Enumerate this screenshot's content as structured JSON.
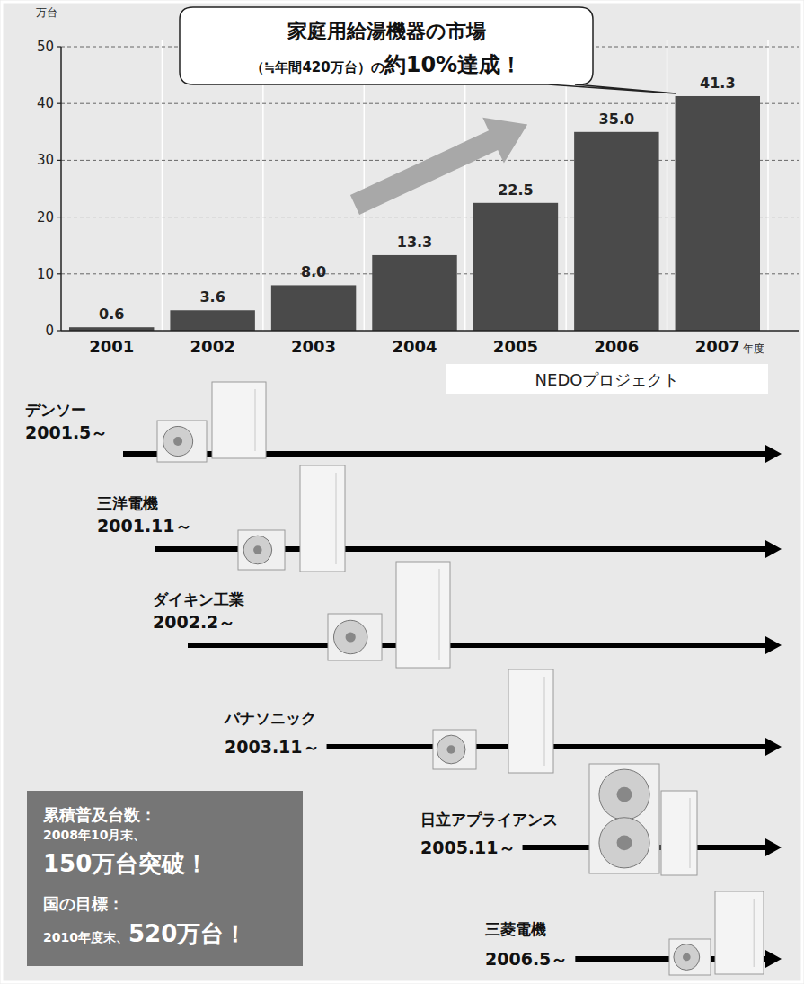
{
  "chart_data": {
    "type": "bar",
    "y_axis_label": "万台",
    "x_axis_label": "年度",
    "categories": [
      "2001",
      "2002",
      "2003",
      "2004",
      "2005",
      "2006",
      "2007"
    ],
    "values": [
      0.6,
      3.6,
      8.0,
      13.3,
      22.5,
      35.0,
      41.3
    ],
    "value_labels": [
      "0.6",
      "3.6",
      "8.0",
      "13.3",
      "22.5",
      "35.0",
      "41.3"
    ],
    "color": "#4a4a4a",
    "ylim": [
      0,
      50
    ],
    "yticks": [
      0,
      10,
      20,
      30,
      40,
      50
    ],
    "grid": true,
    "data_labels": true,
    "annotations": [
      "家庭用給湯機器の市場",
      "（≒年間420万台）の",
      "約10%達成！"
    ]
  },
  "timeline": {
    "label": "NEDOプロジェクト",
    "companies": [
      {
        "name": "デンソー",
        "start": "2001.5～"
      },
      {
        "name": "三洋電機",
        "start": "2001.11～"
      },
      {
        "name": "ダイキン工業",
        "start": "2002.2～"
      },
      {
        "name": "パナソニック",
        "start": "2003.11～"
      },
      {
        "name": "日立アプライアンス",
        "start": "2005.11～"
      },
      {
        "name": "三菱電機",
        "start": "2006.5～"
      }
    ]
  },
  "summary_box": {
    "cumulative": {
      "label": "累積普及台数：",
      "date": "2008年10月末、",
      "value": "150万台突破！"
    },
    "target": {
      "label": "国の目標：",
      "date": "2010年度末、",
      "value": "520万台！"
    }
  }
}
